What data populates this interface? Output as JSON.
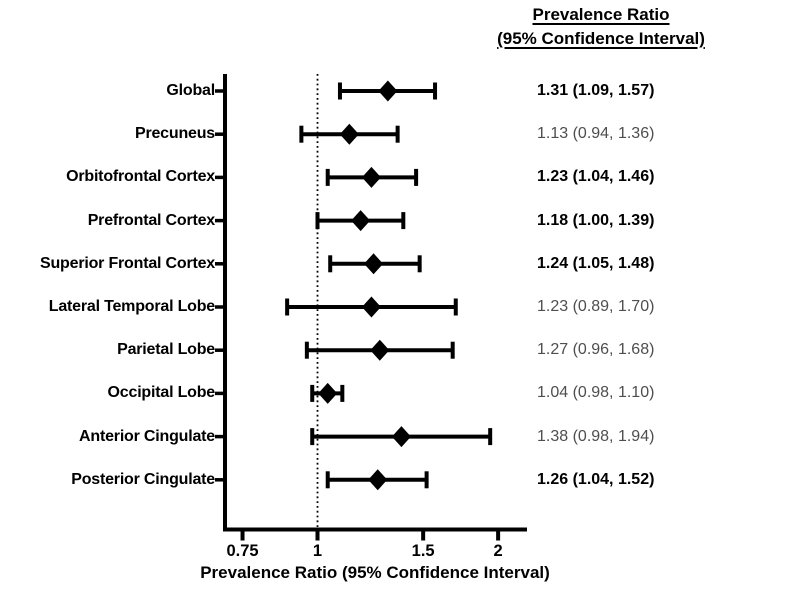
{
  "header": {
    "line1": "Prevalence Ratio",
    "line2": "(95% Confidence Interval)"
  },
  "chart_data": {
    "type": "forest",
    "xlabel": "Prevalence Ratio (95% Confidence Interval)",
    "xscale": "log",
    "xlim": [
      0.7,
      2.24
    ],
    "reference_line": 1,
    "x_ticks": [
      {
        "value": 0.75,
        "label": "0.75"
      },
      {
        "value": 1,
        "label": "1"
      },
      {
        "value": 1.5,
        "label": "1.5"
      },
      {
        "value": 2,
        "label": "2"
      }
    ],
    "rows": [
      {
        "label": "Global",
        "pr": 1.31,
        "lo": 1.09,
        "hi": 1.57,
        "display": "1.31 (1.09, 1.57)",
        "bold": true
      },
      {
        "label": "Precuneus",
        "pr": 1.13,
        "lo": 0.94,
        "hi": 1.36,
        "display": "1.13 (0.94, 1.36)",
        "bold": false
      },
      {
        "label": "Orbitofrontal Cortex",
        "pr": 1.23,
        "lo": 1.04,
        "hi": 1.46,
        "display": "1.23 (1.04, 1.46)",
        "bold": true
      },
      {
        "label": "Prefrontal Cortex",
        "pr": 1.18,
        "lo": 1.0,
        "hi": 1.39,
        "display": "1.18 (1.00, 1.39)",
        "bold": true
      },
      {
        "label": "Superior Frontal Cortex",
        "pr": 1.24,
        "lo": 1.05,
        "hi": 1.48,
        "display": "1.24 (1.05, 1.48)",
        "bold": true
      },
      {
        "label": "Lateral Temporal Lobe",
        "pr": 1.23,
        "lo": 0.89,
        "hi": 1.7,
        "display": "1.23 (0.89, 1.70)",
        "bold": false
      },
      {
        "label": "Parietal Lobe",
        "pr": 1.27,
        "lo": 0.96,
        "hi": 1.68,
        "display": "1.27 (0.96, 1.68)",
        "bold": false
      },
      {
        "label": "Occipital Lobe",
        "pr": 1.04,
        "lo": 0.98,
        "hi": 1.1,
        "display": "1.04 (0.98, 1.10)",
        "bold": false
      },
      {
        "label": "Anterior Cingulate",
        "pr": 1.38,
        "lo": 0.98,
        "hi": 1.94,
        "display": "1.38 (0.98, 1.94)",
        "bold": false
      },
      {
        "label": "Posterior Cingulate",
        "pr": 1.26,
        "lo": 1.04,
        "hi": 1.52,
        "display": "1.26 (1.04, 1.52)",
        "bold": true
      }
    ]
  },
  "colors": {
    "ink": "#000000",
    "muted_value": "#4e4e4e",
    "background": "#ffffff"
  }
}
